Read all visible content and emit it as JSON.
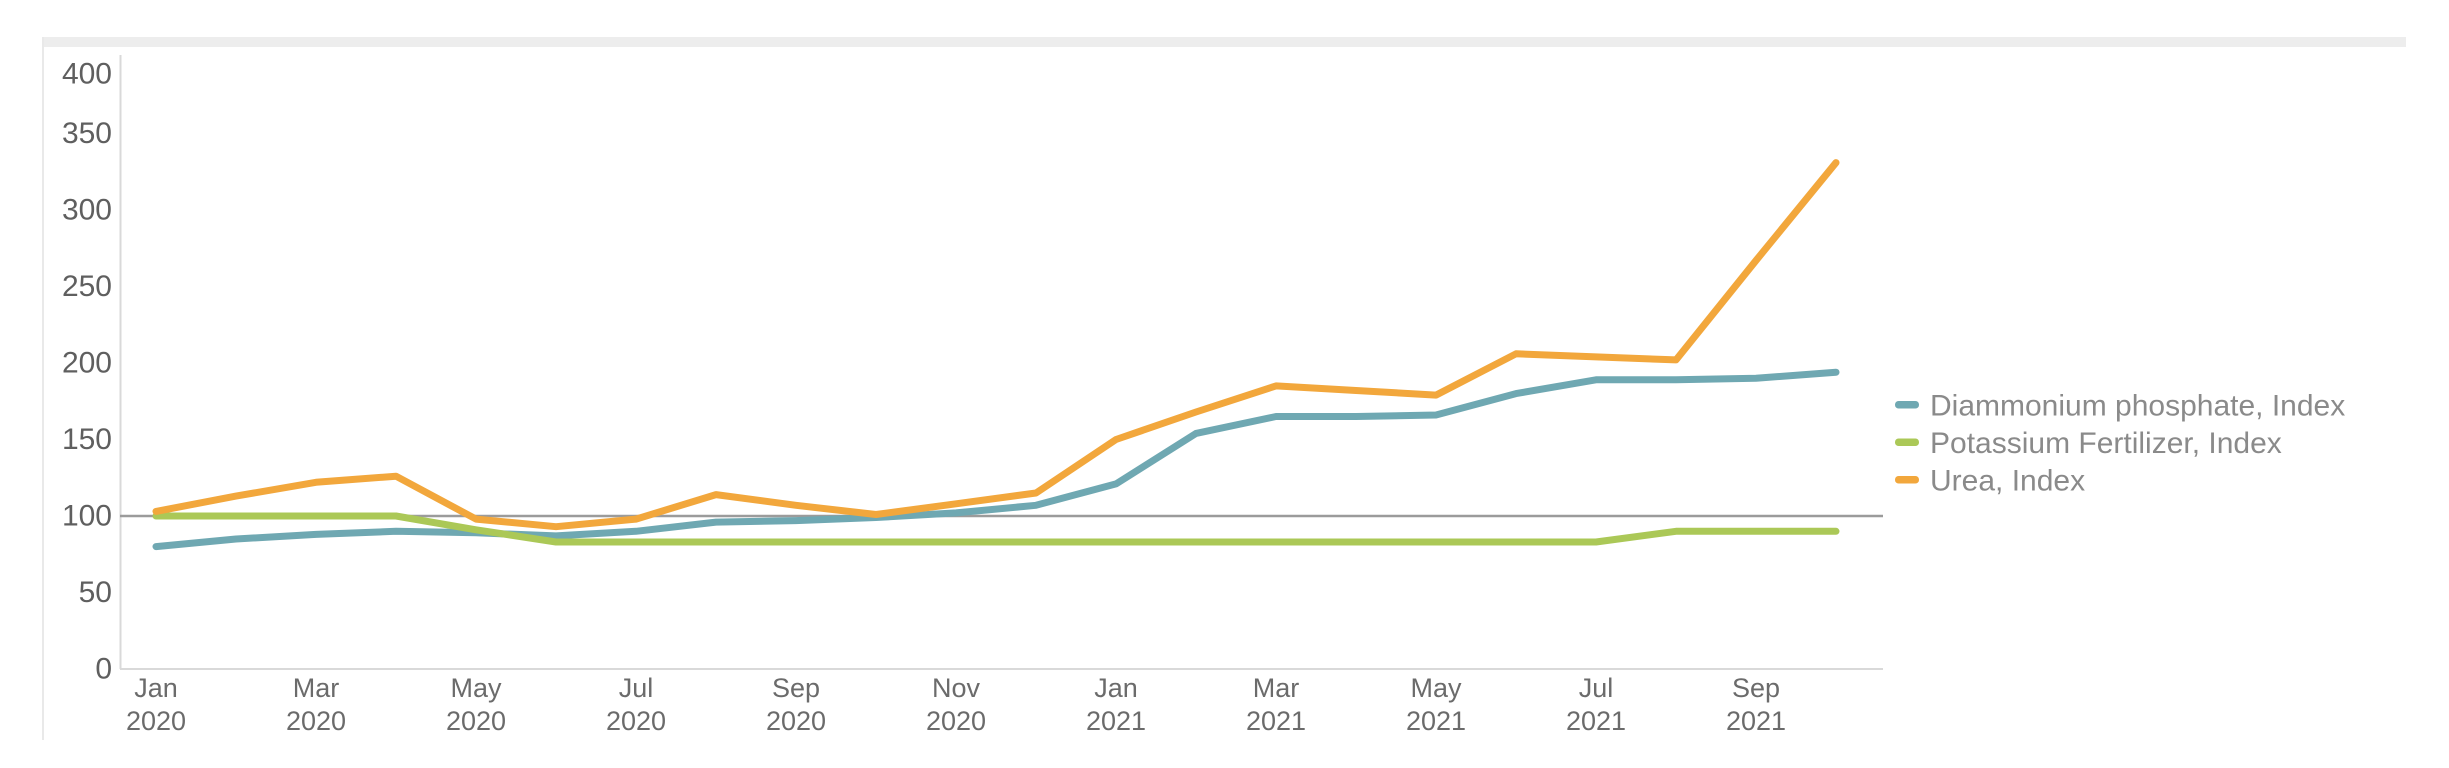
{
  "ui": {
    "strip_color": "#ededed",
    "card_border_color": "#e9e9e9",
    "axis_line_color": "#d9d9d9",
    "reference_line_color": "#9b9b9b",
    "ytick_text_color": "#5f5f5f",
    "xtick_text_color": "#6b6b6b",
    "legend_text_color": "#8a8a8a"
  },
  "chart_data": {
    "type": "line",
    "title": "",
    "xlabel": "",
    "ylabel": "",
    "ylim": [
      0,
      400
    ],
    "ytick_step": 50,
    "grid": false,
    "legend_position": "right",
    "reference_line": 100,
    "x": [
      "Jan 2020",
      "Feb 2020",
      "Mar 2020",
      "Apr 2020",
      "May 2020",
      "Jun 2020",
      "Jul 2020",
      "Aug 2020",
      "Sep 2020",
      "Oct 2020",
      "Nov 2020",
      "Dec 2020",
      "Jan 2021",
      "Feb 2021",
      "Mar 2021",
      "Apr 2021",
      "May 2021",
      "Jun 2021",
      "Jul 2021",
      "Aug 2021",
      "Sep 2021",
      "Oct 2021"
    ],
    "series": [
      {
        "name": "Diammonium phosphate, Index",
        "color": "#6FA8B2",
        "values": [
          80,
          85,
          88,
          90,
          89,
          87,
          90,
          96,
          97,
          99,
          102,
          107,
          121,
          154,
          165,
          165,
          166,
          180,
          189,
          189,
          190,
          194
        ]
      },
      {
        "name": "Potassium Fertilizer, Index",
        "color": "#ABC857",
        "values": [
          100,
          100,
          100,
          100,
          91,
          83,
          83,
          83,
          83,
          83,
          83,
          83,
          83,
          83,
          83,
          83,
          83,
          83,
          83,
          90,
          90,
          90
        ]
      },
      {
        "name": "Urea, Index",
        "color": "#F2A73C",
        "values": [
          103,
          113,
          122,
          126,
          98,
          93,
          98,
          114,
          107,
          101,
          108,
          115,
          150,
          168,
          185,
          182,
          179,
          206,
          204,
          202,
          267,
          331
        ]
      }
    ],
    "ytick_labels": [
      "0",
      "50",
      "100",
      "150",
      "200",
      "250",
      "300",
      "350",
      "400"
    ],
    "xtick_indices": [
      0,
      2,
      4,
      6,
      8,
      10,
      12,
      14,
      16,
      18,
      20
    ],
    "xtick_labels": [
      {
        "month": "Jan",
        "year": "2020"
      },
      {
        "month": "Mar",
        "year": "2020"
      },
      {
        "month": "May",
        "year": "2020"
      },
      {
        "month": "Jul",
        "year": "2020"
      },
      {
        "month": "Sep",
        "year": "2020"
      },
      {
        "month": "Nov",
        "year": "2020"
      },
      {
        "month": "Jan",
        "year": "2021"
      },
      {
        "month": "Mar",
        "year": "2021"
      },
      {
        "month": "May",
        "year": "2021"
      },
      {
        "month": "Jul",
        "year": "2021"
      },
      {
        "month": "Sep",
        "year": "2021"
      }
    ]
  }
}
